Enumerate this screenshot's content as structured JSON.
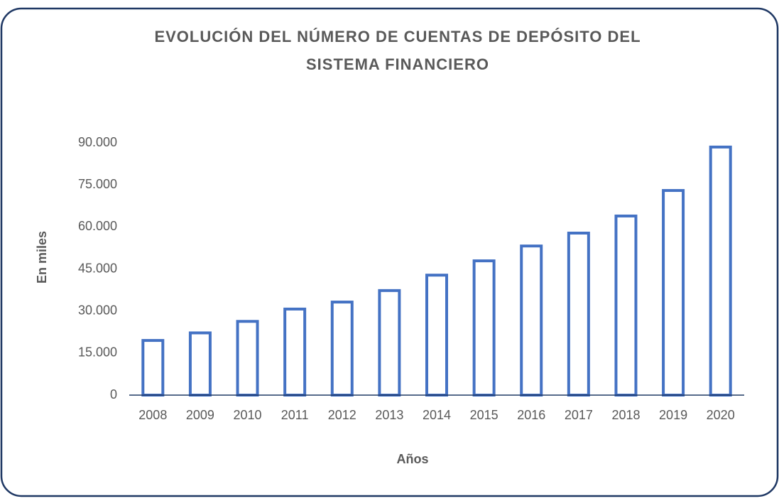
{
  "chart_data": {
    "type": "bar",
    "title": "EVOLUCIÓN DEL NÚMERO DE CUENTAS DE DEPÓSITO DEL",
    "subtitle": "SISTEMA FINANCIERO",
    "y_label": "En miles",
    "x_label": "Años",
    "categories": [
      "2008",
      "2009",
      "2010",
      "2011",
      "2012",
      "2013",
      "2014",
      "2015",
      "2016",
      "2017",
      "2018",
      "2019",
      "2020"
    ],
    "values": [
      19500,
      22200,
      26300,
      30700,
      33200,
      37300,
      42800,
      47900,
      53200,
      57800,
      63900,
      73000,
      88500
    ],
    "color": "#4472c4",
    "ylim": [
      0,
      90000
    ],
    "yticks": [
      0,
      {
        "value": 15000,
        "label": "15.000"
      },
      {
        "value": 30000,
        "label": "30.000"
      },
      {
        "value": 45000,
        "label": "45.000"
      },
      {
        "value": 60000,
        "label": "60.000"
      },
      {
        "value": 75000,
        "label": "75.000"
      },
      {
        "value": 90000,
        "label": "90.000"
      }
    ],
    "grid": false
  }
}
